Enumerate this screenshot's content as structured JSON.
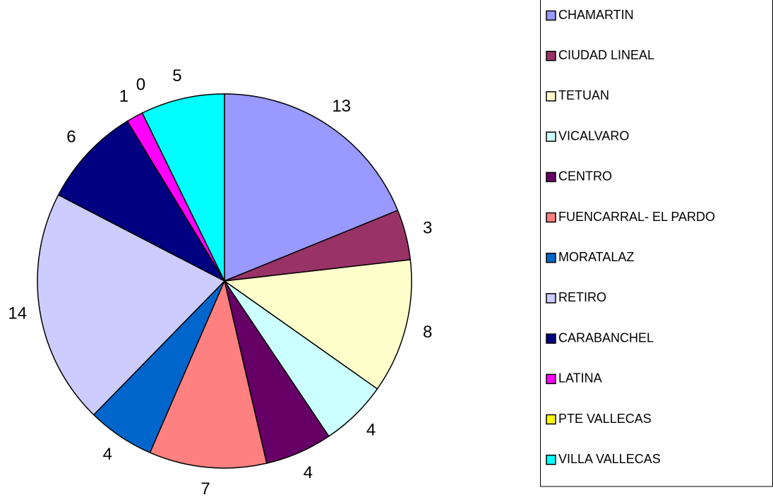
{
  "chart_data": {
    "type": "pie",
    "categories": [
      "CHAMARTIN",
      "CIUDAD LINEAL",
      "TETUAN",
      "VICALVARO",
      "CENTRO",
      "FUENCARRAL- EL PARDO",
      "MORATALAZ",
      "RETIRO",
      "CARABANCHEL",
      "LATINA",
      "PTE VALLECAS",
      "VILLA VALLECAS"
    ],
    "values": [
      13,
      3,
      8,
      4,
      4,
      7,
      4,
      14,
      6,
      1,
      0,
      5
    ],
    "colors": [
      "#9999ff",
      "#993366",
      "#ffffcc",
      "#ccffff",
      "#660066",
      "#ff8080",
      "#0066cc",
      "#ccccff",
      "#000080",
      "#ff00ff",
      "#ffff00",
      "#00ffff"
    ],
    "legend": "right"
  }
}
